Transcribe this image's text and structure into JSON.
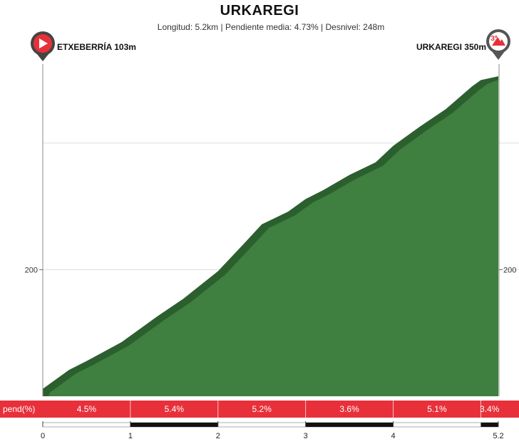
{
  "header": {
    "title": "URKAREGI",
    "subtitle": "Longitud: 5.2km | Pendiente media: 4.73% | Desnivel: 248m"
  },
  "markers": {
    "start_label": "ETXEBERRÍA 103m",
    "end_label": "URKAREGI 350m",
    "end_category": "3ª"
  },
  "colors": {
    "profile_fill": "#3f7f3f",
    "profile_shadow": "#2c5f2e",
    "gradient_bar": "#e8303a",
    "marker_start": "#e8303a",
    "marker_end": "#555555"
  },
  "chart_data": {
    "type": "area",
    "title": "URKAREGI",
    "xlabel": "",
    "ylabel": "",
    "xlim": [
      0,
      5.2
    ],
    "ylim": [
      100,
      350
    ],
    "x_ticks": [
      "0",
      "1",
      "2",
      "3",
      "4",
      "5.2"
    ],
    "y_ticks": [
      200
    ],
    "grid": true,
    "series": [
      {
        "x": [
          0,
          0.3,
          0.5,
          0.9,
          1.3,
          1.6,
          2.0,
          2.3,
          2.5,
          2.8,
          3.0,
          3.2,
          3.5,
          3.8,
          4.0,
          4.3,
          4.6,
          4.9,
          5.0,
          5.2
        ],
        "y": [
          103,
          118,
          125,
          140,
          160,
          174,
          196,
          218,
          233,
          243,
          253,
          260,
          272,
          282,
          295,
          310,
          324,
          342,
          347,
          350
        ]
      }
    ],
    "gradient_row_label": "pend(%)",
    "gradient_segments": [
      {
        "from": 0,
        "to": 1,
        "label": "4.5%"
      },
      {
        "from": 1,
        "to": 2,
        "label": "5.4%"
      },
      {
        "from": 2,
        "to": 3,
        "label": "5.2%"
      },
      {
        "from": 3,
        "to": 4,
        "label": "3.6%"
      },
      {
        "from": 4,
        "to": 5,
        "label": "5.1%"
      },
      {
        "from": 5,
        "to": 5.2,
        "label": "3.4%"
      }
    ]
  }
}
